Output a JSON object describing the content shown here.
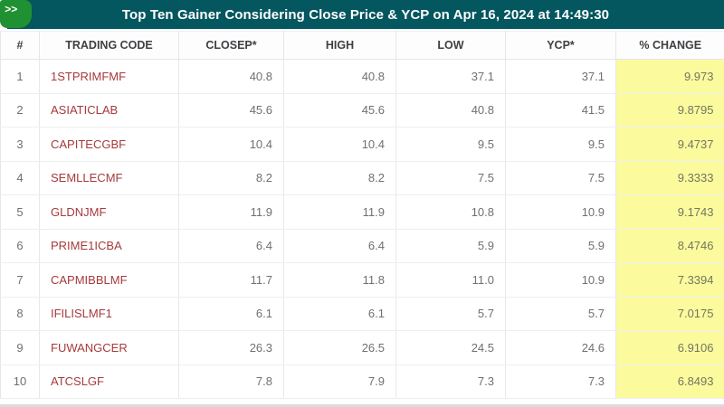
{
  "badge": {
    "label": ">>"
  },
  "header": {
    "title": "Top Ten Gainer Considering Close Price & YCP on Apr 16, 2024 at 14:49:30"
  },
  "colors": {
    "title_bar_teal": "#04565f",
    "badge_green": "#1f9132",
    "trading_code_red": "#a63a3c",
    "change_highlight_yellow": "#fbfb9e"
  },
  "table": {
    "columns": [
      "#",
      "TRADING CODE",
      "CLOSEP*",
      "HIGH",
      "LOW",
      "YCP*",
      "% CHANGE"
    ],
    "rows": [
      [
        "1",
        "1STPRIMFMF",
        "40.8",
        "40.8",
        "37.1",
        "37.1",
        "9.973"
      ],
      [
        "2",
        "ASIATICLAB",
        "45.6",
        "45.6",
        "40.8",
        "41.5",
        "9.8795"
      ],
      [
        "3",
        "CAPITECGBF",
        "10.4",
        "10.4",
        "9.5",
        "9.5",
        "9.4737"
      ],
      [
        "4",
        "SEMLLECMF",
        "8.2",
        "8.2",
        "7.5",
        "7.5",
        "9.3333"
      ],
      [
        "5",
        "GLDNJMF",
        "11.9",
        "11.9",
        "10.8",
        "10.9",
        "9.1743"
      ],
      [
        "6",
        "PRIME1ICBA",
        "6.4",
        "6.4",
        "5.9",
        "5.9",
        "8.4746"
      ],
      [
        "7",
        "CAPMIBBLMF",
        "11.7",
        "11.8",
        "11.0",
        "10.9",
        "7.3394"
      ],
      [
        "8",
        "IFILISLMF1",
        "6.1",
        "6.1",
        "5.7",
        "5.7",
        "7.0175"
      ],
      [
        "9",
        "FUWANGCER",
        "26.3",
        "26.5",
        "24.5",
        "24.6",
        "6.9106"
      ],
      [
        "10",
        "ATCSLGF",
        "7.8",
        "7.9",
        "7.3",
        "7.3",
        "6.8493"
      ]
    ]
  }
}
